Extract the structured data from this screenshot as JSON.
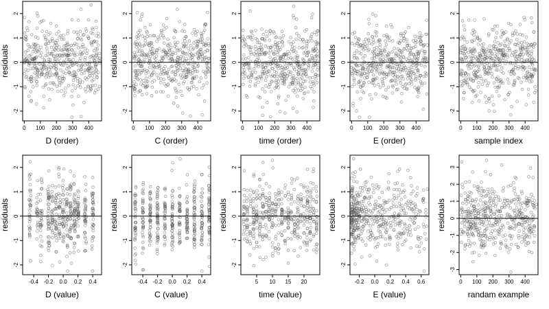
{
  "figure": {
    "layout": {
      "rows": 2,
      "cols": 5
    },
    "colors": {
      "point": "#555555",
      "axis": "#000000",
      "background": "#ffffff"
    }
  },
  "chart_data": [
    {
      "type": "scatter",
      "panel": "D-order",
      "xlabel": "D (order)",
      "ylabel": "residuals",
      "xlim": [
        -10,
        480
      ],
      "ylim": [
        -2.4,
        2.5
      ],
      "xticks": [
        0,
        100,
        200,
        300,
        400
      ],
      "yticks": [
        -2,
        -1,
        0,
        1,
        2
      ],
      "hline": 0,
      "x_dist": "uniform",
      "x_range": [
        0,
        470
      ],
      "n_points": 470,
      "y_sd": 0.75,
      "seed": 11
    },
    {
      "type": "scatter",
      "panel": "C-order",
      "xlabel": "C (order)",
      "ylabel": "residuals",
      "xlim": [
        -10,
        480
      ],
      "ylim": [
        -2.4,
        2.5
      ],
      "xticks": [
        0,
        100,
        200,
        300,
        400
      ],
      "yticks": [
        -2,
        -1,
        0,
        1,
        2
      ],
      "hline": 0,
      "x_dist": "uniform",
      "x_range": [
        0,
        470
      ],
      "n_points": 470,
      "y_sd": 0.75,
      "seed": 23
    },
    {
      "type": "scatter",
      "panel": "time-order",
      "xlabel": "time (order)",
      "ylabel": "residuals",
      "xlim": [
        -10,
        480
      ],
      "ylim": [
        -2.4,
        2.5
      ],
      "xticks": [
        0,
        100,
        200,
        300,
        400
      ],
      "yticks": [
        -2,
        -1,
        0,
        1,
        2
      ],
      "hline": 0,
      "x_dist": "uniform",
      "x_range": [
        0,
        470
      ],
      "n_points": 470,
      "y_sd": 0.75,
      "seed": 37
    },
    {
      "type": "scatter",
      "panel": "E-order",
      "xlabel": "E (order)",
      "ylabel": "residuals",
      "xlim": [
        -10,
        480
      ],
      "ylim": [
        -2.4,
        2.5
      ],
      "xticks": [
        0,
        100,
        200,
        300,
        400
      ],
      "yticks": [
        -2,
        -1,
        0,
        1,
        2
      ],
      "hline": 0,
      "x_dist": "uniform",
      "x_range": [
        0,
        470
      ],
      "n_points": 470,
      "y_sd": 0.75,
      "seed": 41
    },
    {
      "type": "scatter",
      "panel": "sample-index",
      "xlabel": "sample index",
      "ylabel": "residuals",
      "xlim": [
        -10,
        480
      ],
      "ylim": [
        -2.4,
        2.5
      ],
      "xticks": [
        0,
        100,
        200,
        300,
        400
      ],
      "yticks": [
        -2,
        -1,
        0,
        1,
        2
      ],
      "hline": 0,
      "x_dist": "uniform",
      "x_range": [
        0,
        470
      ],
      "n_points": 470,
      "y_sd": 0.75,
      "seed": 53
    },
    {
      "type": "scatter",
      "panel": "D-value",
      "xlabel": "D (value)",
      "ylabel": "residuals",
      "xlim": [
        -0.55,
        0.52
      ],
      "ylim": [
        -2.4,
        2.5
      ],
      "xticks": [
        -0.4,
        -0.2,
        0.0,
        0.2,
        0.4
      ],
      "xtick_labels": [
        "-0.4",
        "-0.2",
        "0.0",
        "0.2",
        "0.4"
      ],
      "yticks": [
        -2,
        -1,
        0,
        1,
        2
      ],
      "hline": 0,
      "x_dist": "jitter_levels",
      "x_levels": [
        -0.45,
        -0.35,
        -0.3,
        -0.2,
        -0.15,
        -0.1,
        -0.05,
        0.0,
        0.05,
        0.1,
        0.15,
        0.2,
        0.3,
        0.4
      ],
      "x_jitter": 0.012,
      "n_points": 470,
      "y_sd": 0.75,
      "seed": 61
    },
    {
      "type": "scatter",
      "panel": "C-value",
      "xlabel": "C (value)",
      "ylabel": "residuals",
      "xlim": [
        -0.55,
        0.52
      ],
      "ylim": [
        -2.4,
        2.5
      ],
      "xticks": [
        -0.4,
        -0.2,
        0.0,
        0.2,
        0.4
      ],
      "xtick_labels": [
        "-0.4",
        "-0.2",
        "0.0",
        "0.2",
        "0.4"
      ],
      "yticks": [
        -2,
        -1,
        0,
        1,
        2
      ],
      "hline": 0,
      "x_dist": "jitter_levels",
      "x_levels": [
        -0.5,
        -0.4,
        -0.3,
        -0.2,
        -0.1,
        0.0,
        0.1,
        0.2,
        0.3,
        0.4,
        0.5
      ],
      "x_jitter": 0.008,
      "n_points": 470,
      "y_sd": 0.75,
      "seed": 71
    },
    {
      "type": "scatter",
      "panel": "time-value",
      "xlabel": "time (value)",
      "ylabel": "residuals",
      "xlim": [
        0,
        25
      ],
      "ylim": [
        -2.4,
        2.5
      ],
      "xticks": [
        5,
        10,
        15,
        20
      ],
      "yticks": [
        -2,
        -1,
        0,
        1,
        2
      ],
      "hline": 0,
      "x_dist": "jitter_levels",
      "x_levels": [
        1,
        2,
        3,
        4,
        5,
        6,
        7,
        8,
        9,
        10,
        11,
        12,
        13,
        14,
        15,
        16,
        17,
        18,
        19,
        20,
        21,
        22,
        23,
        24
      ],
      "x_jitter": 0.15,
      "n_points": 470,
      "y_sd": 0.75,
      "seed": 79
    },
    {
      "type": "scatter",
      "panel": "E-value",
      "xlabel": "E (value)",
      "ylabel": "residuals",
      "xlim": [
        -0.32,
        0.7
      ],
      "ylim": [
        -2.4,
        2.5
      ],
      "xticks": [
        -0.2,
        0.0,
        0.2,
        0.4,
        0.6
      ],
      "xtick_labels": [
        "-0.2",
        "0.0",
        "0.2",
        "0.4",
        "0.6"
      ],
      "yticks": [
        -2,
        -1,
        0,
        1,
        2
      ],
      "hline": 0,
      "x_dist": "skewed",
      "x_range": [
        -0.3,
        0.68
      ],
      "n_points": 470,
      "y_sd": 0.75,
      "seed": 89
    },
    {
      "type": "scatter",
      "panel": "random-example",
      "xlabel": "randam example",
      "ylabel": "residuals",
      "xlim": [
        -10,
        480
      ],
      "ylim": [
        -3.3,
        3.7
      ],
      "xticks": [
        0,
        100,
        200,
        300,
        400
      ],
      "yticks": [
        -3,
        -2,
        -1,
        0,
        1,
        2,
        3
      ],
      "hline": 0,
      "x_dist": "uniform",
      "x_range": [
        0,
        470
      ],
      "n_points": 470,
      "y_sd": 1.0,
      "seed": 97
    }
  ]
}
